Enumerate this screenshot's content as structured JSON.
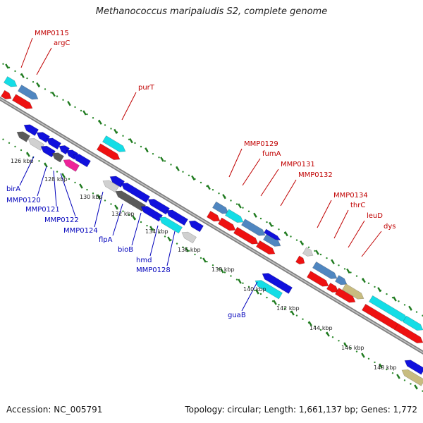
{
  "title": "Methanococcus maripaludis S2, complete genome",
  "footer": {
    "accession": "Accession: NC_005791",
    "topology": "Topology: circular; Length: 1,661,137 bp; Genes: 1,772"
  },
  "colors": {
    "backbone": "#8a8a8a",
    "tick_dot": "#2e8b2e",
    "tick_dash": "#1f7a1f",
    "label_forward": "#c00000",
    "label_reverse": "#0000bb",
    "red": "#ee1111",
    "blue": "#1111dd",
    "cyan": "#14dde6",
    "steel": "#4f86c0",
    "gray": "#9a9a9a",
    "dark_gray": "#5a5a5a",
    "light_gray": "#d0d0d0",
    "pink": "#ee2299",
    "khaki": "#c8bc80"
  },
  "kbp_labels": [
    "126 kbp",
    "128 kbp",
    "130 kbp",
    "132 kbp",
    "134 kbp",
    "136 kbp",
    "138 kbp",
    "140 kbp",
    "142 kbp",
    "144 kbp",
    "146 kbp",
    "148 kbp"
  ],
  "forward_gene_labels": [
    "MMP0115",
    "argC",
    "purT",
    "MMP0129",
    "fumA",
    "MMP0131",
    "MMP0132",
    "MMP0134",
    "thrC",
    "leuD",
    "dys"
  ],
  "reverse_gene_labels": [
    "birA",
    "MMP0120",
    "MMP0121",
    "MMP0122",
    "MMP0124",
    "flpA",
    "bioB",
    "hmd",
    "MMP0128",
    "guaB"
  ]
}
